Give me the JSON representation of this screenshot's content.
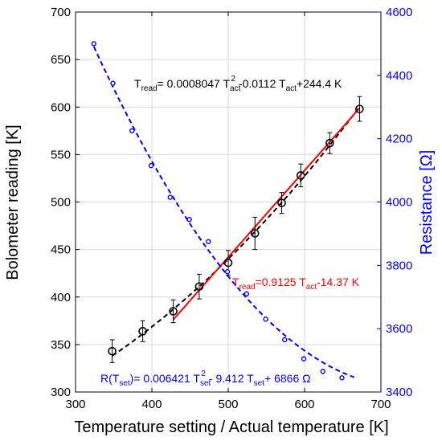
{
  "chart_data": {
    "type": "scatter",
    "xlabel": "Temperature setting / Actual temperature [K]",
    "ylabel": "Bolometer reading [K]",
    "y2label": "Resistance [Ω]",
    "xlim": [
      300,
      700
    ],
    "ylim": [
      300,
      700
    ],
    "y2lim": [
      3400,
      4600
    ],
    "x_ticks": [
      "300",
      "400",
      "500",
      "600",
      "700"
    ],
    "y_ticks": [
      "300",
      "350",
      "400",
      "450",
      "500",
      "550",
      "600",
      "650",
      "700"
    ],
    "y2_ticks": [
      "3400",
      "3600",
      "3800",
      "4000",
      "4200",
      "4400",
      "4600"
    ],
    "grid": true,
    "colors": {
      "bolometer": "#000000",
      "linear_fit": "#ff0000",
      "resistance": "#0000ff",
      "grid": "#d9d9d9"
    },
    "series": [
      {
        "axis": "left",
        "x": [
          348,
          388,
          428,
          462,
          500,
          535,
          570,
          595,
          633,
          672
        ],
        "y": [
          343,
          364,
          385,
          411,
          436,
          467,
          499,
          528,
          562,
          598
        ],
        "err": [
          12,
          11,
          12,
          13,
          13,
          17,
          11,
          12,
          11,
          13
        ]
      },
      {
        "axis": "right",
        "x": [
          324,
          349,
          374,
          399,
          424,
          449,
          474,
          499,
          524,
          549,
          574,
          599,
          624,
          649
        ],
        "y": [
          4500,
          4375,
          4225,
          4115,
          4015,
          3945,
          3875,
          3780,
          3710,
          3630,
          3565,
          3505,
          3465,
          3445
        ]
      }
    ],
    "fits": {
      "quadratic": {
        "a": 0.0008047,
        "b": -0.0112,
        "c": 244.4,
        "x_range": [
          348,
          672
        ]
      },
      "linear": {
        "m": 0.9125,
        "c": -14.37,
        "x_range": [
          428,
          672
        ]
      },
      "resistance": {
        "a": 0.006421,
        "b": -9.412,
        "c": 6866,
        "x_range": [
          324,
          665
        ]
      }
    },
    "annotations": {
      "quadratic": {
        "p1": "T",
        "s1": "read",
        "p2": "= 0.0008047 T",
        "s2": "act",
        "sup2": "2",
        "p3": "-0.0112 T",
        "s3": "act",
        "p4": "+244.4 K"
      },
      "linear": {
        "p1": "T",
        "s1": "read",
        "p2": "=0.9125 T",
        "s2": "act",
        "p3": "-14.37 K"
      },
      "resistance": {
        "p1": "R(T",
        "s1": "set",
        "p2": ")= 0.006421 T",
        "s2": "set",
        "sup2": "2",
        "p3": "- 9.412 T",
        "s3": "set",
        "p4": "+ 6866 Ω"
      }
    }
  }
}
